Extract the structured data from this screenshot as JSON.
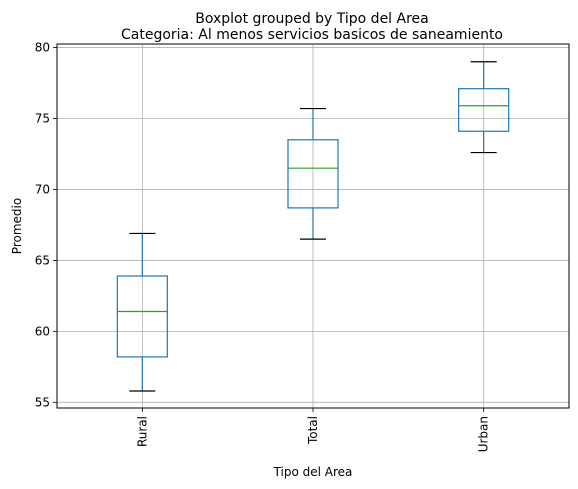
{
  "chart_data": {
    "type": "boxplot",
    "suptitle": "Boxplot grouped by Tipo del Area",
    "title": "Categoria: Al menos servicios basicos de saneamiento",
    "xlabel": "Tipo del Area",
    "ylabel": "Promedio",
    "ylim": [
      54.6,
      80.25
    ],
    "yticks": [
      55,
      60,
      65,
      70,
      75,
      80
    ],
    "grid": true,
    "categories": [
      "Rural",
      "Total",
      "Urban"
    ],
    "boxes": [
      {
        "category": "Rural",
        "whisker_low": 55.8,
        "q1": 58.2,
        "median": 61.4,
        "q3": 63.9,
        "whisker_high": 66.9
      },
      {
        "category": "Total",
        "whisker_low": 66.5,
        "q1": 68.7,
        "median": 71.5,
        "q3": 73.5,
        "whisker_high": 75.7
      },
      {
        "category": "Urban",
        "whisker_low": 72.6,
        "q1": 74.1,
        "median": 75.9,
        "q3": 77.1,
        "whisker_high": 79.0
      }
    ],
    "colors": {
      "box": "#1f77b4",
      "median": "#2ca02c",
      "whisker_cap": "#000000",
      "grid": "#b0b0b0"
    }
  }
}
